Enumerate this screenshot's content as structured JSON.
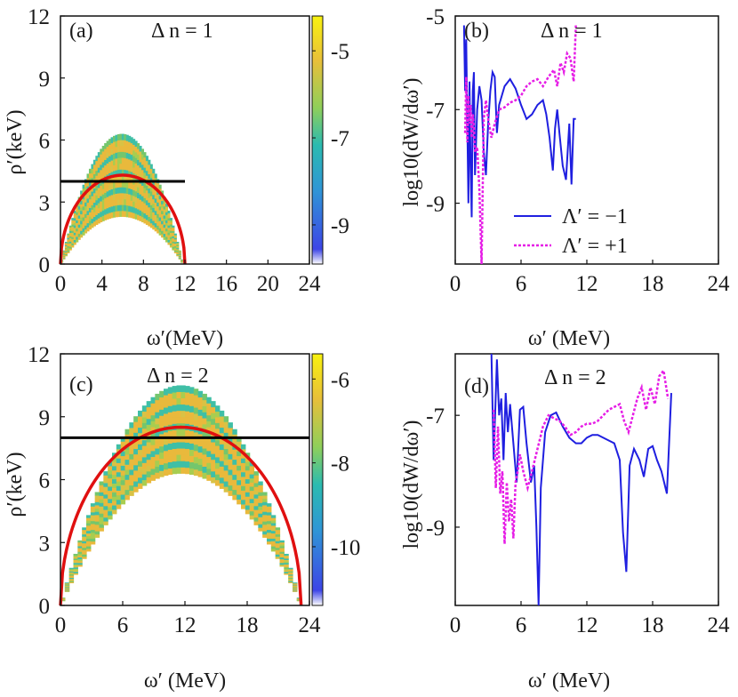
{
  "figure": {
    "panels": {
      "a": {
        "label": "(a)",
        "annotation": "Δ n = 1"
      },
      "b": {
        "label": "(b)",
        "annotation": "Δ n = 1"
      },
      "c": {
        "label": "(c)",
        "annotation": "Δ n = 2"
      },
      "d": {
        "label": "(d)",
        "annotation": "Δ n = 2"
      }
    },
    "colors": {
      "line_minus": "#1f1fe0",
      "line_plus": "#e61ee6",
      "red_curve": "#e01010",
      "black_line": "#000000",
      "colormap": [
        "#ffffff",
        "#3d45e6",
        "#2f96d6",
        "#2bbbb0",
        "#8fcf5a",
        "#e8bf3a",
        "#f8f20f"
      ]
    }
  },
  "chart_data": [
    {
      "id": "a",
      "type": "heatmap",
      "xlabel": "ω′(MeV)",
      "ylabel": "ρ′(keV)",
      "xlim": [
        0,
        24
      ],
      "ylim": [
        0,
        12
      ],
      "xticks": [
        "0",
        "4",
        "8",
        "12",
        "16",
        "20",
        "24"
      ],
      "yticks": [
        "0",
        "3",
        "6",
        "9",
        "12"
      ],
      "colorbar": {
        "ticks": [
          "-5",
          "-7",
          "-9"
        ],
        "tick_values": [
          -5,
          -7,
          -9
        ],
        "range": [
          -9.9,
          -4.2
        ]
      },
      "band": {
        "omega_max": 11.8,
        "rho_outer": 6.3,
        "rho_inner": 2.3
      },
      "red_curve": {
        "omega_max": 12,
        "rho_peak": 4.3
      },
      "black_line": {
        "rho": 4.0,
        "omega_range": [
          0,
          12
        ]
      }
    },
    {
      "id": "b",
      "type": "line",
      "xlabel": "ω′ (MeV)",
      "ylabel": "log10(dW/dω′)",
      "xlim": [
        0,
        24
      ],
      "ylim": [
        -10.3,
        -5
      ],
      "xticks": [
        "0",
        "6",
        "12",
        "18",
        "24"
      ],
      "yticks": [
        "-5",
        "-7",
        "-9"
      ],
      "legend": {
        "position": "right",
        "entries": [
          "Λ′ = −1",
          "Λ′ = +1"
        ]
      },
      "series": [
        {
          "name": "Λ′ = −1",
          "style": "solid",
          "x": [
            0.8,
            0.9,
            1.0,
            1.1,
            1.2,
            1.3,
            1.4,
            1.5,
            1.6,
            1.7,
            1.8,
            2.0,
            2.2,
            2.4,
            2.6,
            2.8,
            3.0,
            3.2,
            3.4,
            3.6,
            3.8,
            4.0,
            4.5,
            5.0,
            5.5,
            6.0,
            6.5,
            7.0,
            7.5,
            8.0,
            8.3,
            8.6,
            8.9,
            9.1,
            9.3,
            9.5,
            9.8,
            10.1,
            10.4,
            10.6,
            10.8,
            11.0
          ],
          "y": [
            -5.2,
            -6.6,
            -5.5,
            -7.3,
            -9.0,
            -6.4,
            -8.2,
            -9.3,
            -6.6,
            -6.2,
            -8.4,
            -7.0,
            -6.5,
            -6.8,
            -7.9,
            -8.4,
            -7.3,
            -6.6,
            -6.2,
            -6.3,
            -7.5,
            -6.9,
            -6.5,
            -6.35,
            -6.55,
            -6.9,
            -7.2,
            -7.1,
            -6.9,
            -6.8,
            -7.1,
            -7.6,
            -8.3,
            -7.4,
            -7.0,
            -7.5,
            -8.2,
            -8.5,
            -7.3,
            -8.6,
            -7.2,
            -7.2
          ]
        },
        {
          "name": "Λ′ = +1",
          "style": "dashed",
          "x": [
            0.9,
            1.0,
            1.1,
            1.2,
            1.3,
            1.4,
            1.5,
            1.6,
            1.7,
            1.8,
            2.0,
            2.2,
            2.4,
            2.6,
            2.8,
            3.0,
            3.3,
            3.6,
            4.0,
            4.5,
            5.0,
            5.5,
            6.0,
            6.5,
            7.0,
            7.5,
            8.0,
            8.5,
            9.0,
            9.3,
            9.6,
            9.9,
            10.2,
            10.5,
            10.8,
            11.0
          ],
          "y": [
            -7.5,
            -6.3,
            -7.7,
            -6.7,
            -7.3,
            -6.9,
            -7.6,
            -7.1,
            -7.4,
            -7.9,
            -7.8,
            -8.7,
            -10.3,
            -7.2,
            -6.8,
            -7.2,
            -7.6,
            -7.3,
            -7.0,
            -6.95,
            -6.85,
            -6.8,
            -6.7,
            -6.5,
            -6.4,
            -6.35,
            -6.5,
            -6.3,
            -6.15,
            -6.5,
            -6.0,
            -6.2,
            -5.8,
            -5.9,
            -6.4,
            -5.2
          ]
        }
      ]
    },
    {
      "id": "c",
      "type": "heatmap",
      "xlabel": "ω′ (MeV)",
      "ylabel": "ρ′(keV)",
      "xlim": [
        0,
        24
      ],
      "ylim": [
        0,
        12
      ],
      "xticks": [
        "0",
        "6",
        "12",
        "18",
        "24"
      ],
      "yticks": [
        "0",
        "3",
        "6",
        "9",
        "12"
      ],
      "colorbar": {
        "ticks": [
          "-6",
          "-8",
          "-10"
        ],
        "tick_values": [
          -6,
          -8,
          -10
        ],
        "range": [
          -11.4,
          -5.4
        ]
      },
      "band": {
        "omega_max": 23.2,
        "rho_outer": 10.5,
        "rho_inner": 6.3
      },
      "red_curve": {
        "omega_max": 23.2,
        "rho_peak": 8.5
      },
      "black_line": {
        "rho": 8.0,
        "omega_range": [
          0,
          24
        ]
      }
    },
    {
      "id": "d",
      "type": "line",
      "xlabel": "ω′ (MeV)",
      "ylabel": "log10(dW/dω′)",
      "xlim": [
        0,
        24
      ],
      "ylim": [
        -10.4,
        -5.9
      ],
      "xticks": [
        "0",
        "6",
        "12",
        "18",
        "24"
      ],
      "yticks": [
        "-7",
        "-9"
      ],
      "series": [
        {
          "name": "Λ′ = −1",
          "style": "solid",
          "x": [
            3.3,
            3.5,
            3.8,
            4.0,
            4.2,
            4.4,
            4.6,
            4.8,
            5.0,
            5.3,
            5.6,
            5.9,
            6.2,
            6.5,
            6.9,
            7.2,
            7.4,
            7.6,
            7.8,
            8.2,
            8.7,
            9.2,
            9.8,
            10.4,
            11.0,
            11.5,
            12.0,
            12.5,
            13.0,
            13.5,
            14.0,
            14.5,
            15.0,
            15.3,
            15.6,
            15.9,
            16.3,
            16.8,
            17.2,
            17.6,
            18.0,
            18.4,
            18.8,
            19.3,
            19.7
          ],
          "y": [
            -5.9,
            -7.8,
            -6.0,
            -7.0,
            -6.7,
            -7.8,
            -6.6,
            -7.3,
            -6.8,
            -7.5,
            -8.2,
            -6.9,
            -6.85,
            -7.5,
            -8.2,
            -7.9,
            -9.0,
            -10.4,
            -8.3,
            -7.3,
            -7.0,
            -6.95,
            -7.2,
            -7.4,
            -7.5,
            -7.5,
            -7.4,
            -7.35,
            -7.35,
            -7.4,
            -7.45,
            -7.5,
            -7.8,
            -9.1,
            -9.8,
            -7.9,
            -7.6,
            -7.8,
            -8.1,
            -7.6,
            -7.55,
            -7.8,
            -8.0,
            -8.4,
            -6.6
          ]
        },
        {
          "name": "Λ′ = +1",
          "style": "dashed",
          "x": [
            3.5,
            3.7,
            3.9,
            4.1,
            4.3,
            4.5,
            4.7,
            4.9,
            5.1,
            5.3,
            5.5,
            5.7,
            5.9,
            6.2,
            6.6,
            7.0,
            7.5,
            8.0,
            8.5,
            9.0,
            9.5,
            10.0,
            10.5,
            11.0,
            11.5,
            12.0,
            12.5,
            13.0,
            13.5,
            14.0,
            14.5,
            15.0,
            15.4,
            15.8,
            16.2,
            16.6,
            17.0,
            17.4,
            17.8,
            18.2,
            18.6,
            19.0,
            19.4
          ],
          "y": [
            -6.9,
            -8.3,
            -7.2,
            -8.4,
            -8.0,
            -9.3,
            -8.2,
            -8.9,
            -8.5,
            -9.2,
            -8.2,
            -8.0,
            -7.7,
            -8.0,
            -8.3,
            -8.0,
            -7.6,
            -7.2,
            -7.0,
            -7.05,
            -7.1,
            -7.2,
            -7.35,
            -7.3,
            -7.2,
            -7.15,
            -7.15,
            -7.1,
            -7.0,
            -6.9,
            -6.85,
            -6.8,
            -7.1,
            -7.3,
            -7.0,
            -6.7,
            -6.5,
            -6.9,
            -6.5,
            -6.8,
            -6.3,
            -6.2,
            -6.7
          ]
        }
      ]
    }
  ]
}
